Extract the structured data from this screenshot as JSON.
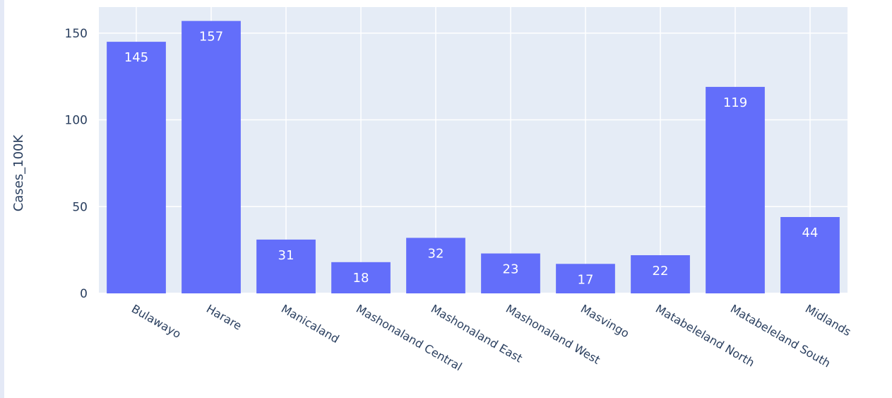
{
  "chart_data": {
    "type": "bar",
    "title": "",
    "xlabel": "",
    "ylabel": "Cases_100K",
    "categories": [
      "Bulawayo",
      "Harare",
      "Manicaland",
      "Mashonaland Central",
      "Mashonaland East",
      "Mashonaland West",
      "Masvingo",
      "Matabeleland North",
      "Matabeleland South",
      "Midlands"
    ],
    "values": [
      145,
      157,
      31,
      18,
      32,
      23,
      17,
      22,
      119,
      44
    ],
    "data_labels": [
      "145",
      "157",
      "31",
      "18",
      "32",
      "23",
      "17",
      "22",
      "119",
      "44"
    ],
    "ylim": [
      0,
      165
    ],
    "yticks": [
      0,
      50,
      100,
      150
    ],
    "ytick_labels": [
      "0",
      "50",
      "100",
      "150"
    ],
    "grid": true,
    "legend": "none",
    "colors": {
      "bar": "#636efa",
      "plot_background": "#e5ecf6",
      "grid": "#ffffff",
      "text": "#2a3f5f",
      "data_label": "#ffffff"
    }
  }
}
